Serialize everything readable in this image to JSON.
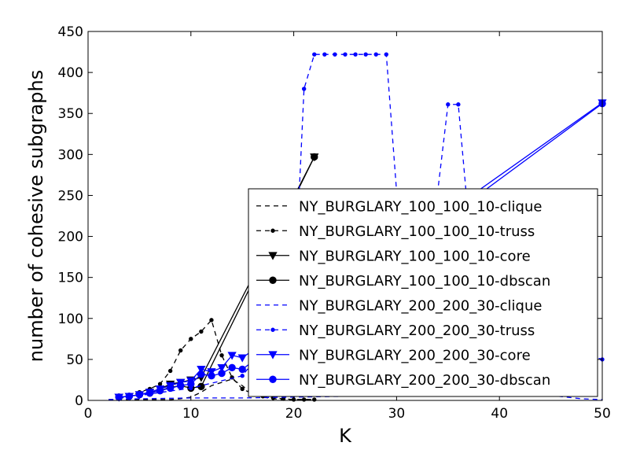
{
  "chart_data": {
    "type": "line",
    "title": "",
    "xlabel": "K",
    "ylabel": "number of cohesive subgraphs",
    "xlim": [
      0,
      50
    ],
    "ylim": [
      0,
      450
    ],
    "xticks": [
      0,
      10,
      20,
      30,
      40,
      50
    ],
    "yticks": [
      0,
      50,
      100,
      150,
      200,
      250,
      300,
      350,
      400,
      450
    ],
    "grid": false,
    "legend_position": "center-right",
    "series": [
      {
        "name": "NY_BURGLARY_100_100_10-clique",
        "color": "#000000",
        "linestyle": "dashed",
        "marker": "none",
        "x": [
          2,
          3,
          4,
          5,
          6,
          7,
          8,
          9,
          10,
          11,
          12,
          13,
          14,
          15,
          16,
          17,
          18,
          19,
          20,
          21,
          22
        ],
        "y": [
          1,
          1,
          1,
          1,
          1,
          1,
          1,
          2,
          4,
          10,
          18,
          22,
          26,
          18,
          8,
          4,
          2,
          1,
          1,
          1,
          1
        ]
      },
      {
        "name": "NY_BURGLARY_100_100_10-truss",
        "color": "#000000",
        "linestyle": "dashed",
        "marker": "dot",
        "x": [
          3,
          4,
          5,
          6,
          7,
          8,
          9,
          10,
          11,
          12,
          13,
          14,
          15,
          16,
          17,
          18,
          19,
          20,
          21,
          22
        ],
        "y": [
          2,
          5,
          10,
          14,
          20,
          36,
          61,
          75,
          84,
          98,
          55,
          28,
          14,
          8,
          5,
          3,
          2,
          1,
          1,
          1
        ]
      },
      {
        "name": "NY_BURGLARY_100_100_10-core",
        "color": "#000000",
        "linestyle": "solid",
        "marker": "triangle-down",
        "x": [
          3,
          4,
          5,
          6,
          7,
          8,
          9,
          10,
          11,
          22
        ],
        "y": [
          4,
          5,
          7,
          10,
          14,
          20,
          22,
          25,
          28,
          297
        ]
      },
      {
        "name": "NY_BURGLARY_100_100_10-dbscan",
        "color": "#000000",
        "linestyle": "solid",
        "marker": "circle",
        "x": [
          3,
          4,
          5,
          6,
          7,
          8,
          9,
          10,
          11,
          22
        ],
        "y": [
          4,
          5,
          7,
          9,
          12,
          16,
          18,
          15,
          17,
          297
        ]
      },
      {
        "name": "NY_BURGLARY_200_200_30-clique",
        "color": "#0000ff",
        "linestyle": "dashed",
        "marker": "none",
        "x": [
          2,
          5,
          10,
          15,
          20,
          25,
          30,
          35,
          40,
          45,
          48,
          50
        ],
        "y": [
          1,
          2,
          3,
          3,
          4,
          5,
          6,
          8,
          10,
          6,
          2,
          1
        ]
      },
      {
        "name": "NY_BURGLARY_200_200_30-truss",
        "color": "#0000ff",
        "linestyle": "dashed",
        "marker": "dot",
        "x": [
          3,
          5,
          10,
          15,
          20,
          21,
          22,
          23,
          24,
          25,
          26,
          27,
          28,
          29,
          30,
          33,
          34,
          35,
          36,
          37,
          40,
          45,
          50
        ],
        "y": [
          3,
          6,
          15,
          30,
          110,
          380,
          422,
          422,
          422,
          422,
          422,
          422,
          422,
          422,
          255,
          245,
          255,
          361,
          361,
          220,
          150,
          70,
          50
        ]
      },
      {
        "name": "NY_BURGLARY_200_200_30-core",
        "color": "#0000ff",
        "linestyle": "solid",
        "marker": "triangle-down",
        "x": [
          3,
          4,
          5,
          6,
          7,
          8,
          9,
          10,
          11,
          12,
          13,
          14,
          15,
          50
        ],
        "y": [
          4,
          5,
          7,
          10,
          14,
          18,
          22,
          24,
          38,
          35,
          40,
          55,
          52,
          363
        ]
      },
      {
        "name": "NY_BURGLARY_200_200_30-dbscan",
        "color": "#0000ff",
        "linestyle": "solid",
        "marker": "circle",
        "x": [
          3,
          4,
          5,
          6,
          7,
          8,
          9,
          10,
          11,
          12,
          13,
          14,
          15,
          50
        ],
        "y": [
          4,
          5,
          7,
          9,
          12,
          15,
          18,
          20,
          32,
          30,
          33,
          40,
          38,
          362
        ]
      }
    ]
  }
}
